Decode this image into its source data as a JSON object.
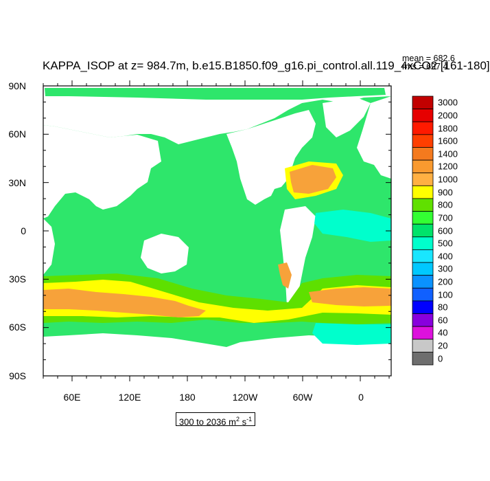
{
  "title": "KAPPA_ISOP at z= 984.7m, b.e15.B1850.f09_g16.pi_control.all.119_4xCO2 [161-180]",
  "stats": {
    "mean": "mean = 682.6",
    "rms": "rms = 697.4"
  },
  "axes": {
    "y_ticks": [
      "90N",
      "60N",
      "30N",
      "0",
      "30S",
      "60S",
      "90S"
    ],
    "x_ticks": [
      "60E",
      "120E",
      "180",
      "120W",
      "60W",
      "0"
    ]
  },
  "range_box": {
    "text": "300 to 2036 m",
    "sup": "2",
    "unit_tail": " s",
    "sup2": "-1"
  },
  "colorbar": {
    "labels": [
      "3000",
      "2000",
      "1800",
      "1600",
      "1400",
      "1200",
      "1000",
      "900",
      "800",
      "700",
      "600",
      "500",
      "400",
      "300",
      "200",
      "100",
      "80",
      "60",
      "40",
      "20",
      "0"
    ],
    "colors": [
      "#c20000",
      "#e60000",
      "#ff1a00",
      "#ff3f00",
      "#f47a1e",
      "#f99a2f",
      "#ffb043",
      "#ffff00",
      "#60e000",
      "#33ff33",
      "#00e36a",
      "#00ffcc",
      "#19e6ff",
      "#00c8ff",
      "#0a92ff",
      "#1060ff",
      "#0000ff",
      "#8800dd",
      "#dd11dd",
      "#c8c8c8",
      "#6e6e6e"
    ]
  },
  "map_colors": {
    "ocean_600_700": "#2ee66b",
    "ocean_700_800": "#5ee000",
    "ocean_800_900": "#ffff00",
    "ocean_900_1000": "#ffb043",
    "ocean_1000_1200": "#f7a23a",
    "ocean_1200_1400": "#ef8a2a",
    "ocean_500_600": "#00ffcc",
    "land": "#ffffff"
  }
}
